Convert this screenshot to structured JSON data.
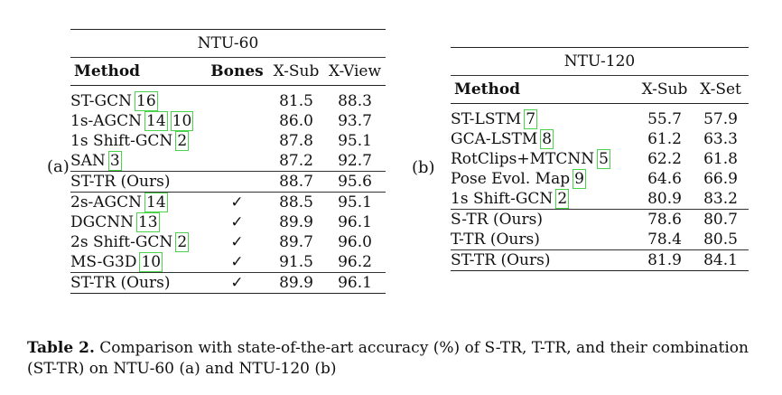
{
  "panel_a": {
    "label": "(a)",
    "title": "NTU-60",
    "headers": {
      "method": "Method",
      "bones": "Bones",
      "col1": "X-Sub",
      "col2": "X-View"
    },
    "rows": [
      {
        "method": "ST-GCN",
        "refs": [
          "16"
        ],
        "bones": "",
        "v1": "81.5",
        "v2": "88.3",
        "bold1": false,
        "bold2": false
      },
      {
        "method": "1s-AGCN",
        "refs": [
          "14",
          "10"
        ],
        "bones": "",
        "v1": "86.0",
        "v2": "93.7",
        "bold1": false,
        "bold2": false
      },
      {
        "method": "1s Shift-GCN",
        "refs": [
          "2"
        ],
        "bones": "",
        "v1": "87.8",
        "v2": "95.1",
        "bold1": false,
        "bold2": false
      },
      {
        "method": "SAN",
        "refs": [
          "3"
        ],
        "bones": "",
        "v1": "87.2",
        "v2": "92.7",
        "bold1": false,
        "bold2": false
      },
      {
        "method": "ST-TR (Ours)",
        "refs": [],
        "bones": "",
        "v1": "88.7",
        "v2": "95.6",
        "bold1": true,
        "bold2": true,
        "rule_before": true
      },
      {
        "method": "2s-AGCN",
        "refs": [
          "14"
        ],
        "bones": "✓",
        "v1": "88.5",
        "v2": "95.1",
        "bold1": false,
        "bold2": false,
        "rule_before": true
      },
      {
        "method": "DGCNN",
        "refs": [
          "13"
        ],
        "bones": "✓",
        "v1": "89.9",
        "v2": "96.1",
        "bold1": false,
        "bold2": false
      },
      {
        "method": "2s Shift-GCN",
        "refs": [
          "2"
        ],
        "bones": "✓",
        "v1": "89.7",
        "v2": "96.0",
        "bold1": false,
        "bold2": false
      },
      {
        "method": "MS-G3D",
        "refs": [
          "10"
        ],
        "bones": "✓",
        "v1": "91.5",
        "v2": "96.2",
        "bold1": true,
        "bold2": true
      },
      {
        "method": "ST-TR (Ours)",
        "refs": [],
        "bones": "✓",
        "v1": "89.9",
        "v2": "96.1",
        "bold1": false,
        "bold2": false,
        "rule_before": true
      }
    ]
  },
  "panel_b": {
    "label": "(b)",
    "title": "NTU-120",
    "headers": {
      "method": "Method",
      "col1": "X-Sub",
      "col2": "X-Set"
    },
    "rows": [
      {
        "method": "ST-LSTM",
        "refs": [
          "7"
        ],
        "v1": "55.7",
        "v2": "57.9",
        "bold1": false,
        "bold2": false
      },
      {
        "method": "GCA-LSTM",
        "refs": [
          "8"
        ],
        "v1": "61.2",
        "v2": "63.3",
        "bold1": false,
        "bold2": false
      },
      {
        "method": "RotClips+MTCNN",
        "refs": [
          "5"
        ],
        "v1": "62.2",
        "v2": "61.8",
        "bold1": false,
        "bold2": false
      },
      {
        "method": "Pose Evol. Map",
        "refs": [
          "9"
        ],
        "v1": "64.6",
        "v2": "66.9",
        "bold1": false,
        "bold2": false
      },
      {
        "method": "1s Shift-GCN",
        "refs": [
          "2"
        ],
        "v1": "80.9",
        "v2": "83.2",
        "bold1": false,
        "bold2": false
      },
      {
        "method": "S-TR (Ours)",
        "refs": [],
        "v1": "78.6",
        "v2": "80.7",
        "bold1": false,
        "bold2": false,
        "rule_before": true
      },
      {
        "method": "T-TR (Ours)",
        "refs": [],
        "v1": "78.4",
        "v2": "80.5",
        "bold1": false,
        "bold2": false
      },
      {
        "method": "ST-TR (Ours)",
        "refs": [],
        "v1": "81.9",
        "v2": "84.1",
        "bold1": true,
        "bold2": true,
        "rule_before": true
      }
    ]
  },
  "caption": {
    "label": "Table 2.",
    "text": "Comparison with state-of-the-art accuracy (%) of S-TR, T-TR, and their combination (ST-TR) on NTU-60 (a) and NTU-120 (b)"
  }
}
